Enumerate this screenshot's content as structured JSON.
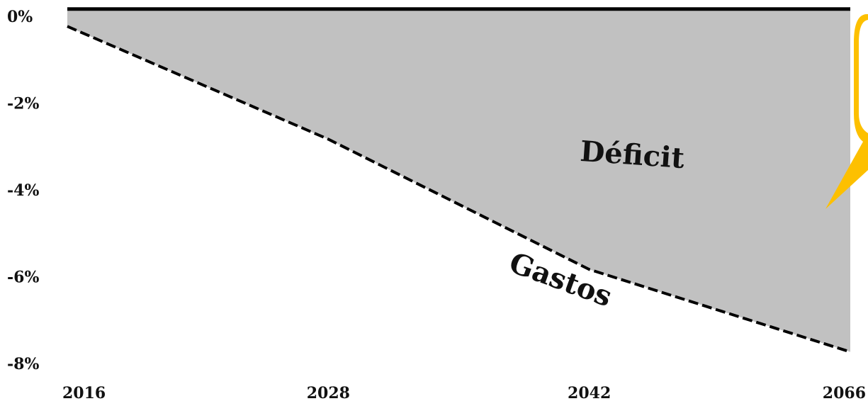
{
  "chart_data": {
    "type": "area",
    "categories": [
      "2016",
      "2028",
      "2042",
      "2066"
    ],
    "series": [
      {
        "color": "#000000",
        "values": [
          0.2,
          0.2,
          0.2,
          0.2
        ]
      },
      {
        "name": "Gastos",
        "color": "#000000",
        "values": [
          -0.2,
          -2.8,
          -5.8,
          -7.7
        ]
      }
    ],
    "fill_color": "#c1c1c1",
    "annotations": [
      "Déficit"
    ],
    "ylim": [
      -8.2,
      0.3
    ],
    "yticks": [
      {
        "value": 0,
        "label": "0%"
      },
      {
        "value": -2,
        "label": "-2%"
      },
      {
        "value": -4,
        "label": "-4%"
      },
      {
        "value": -6,
        "label": "-6%"
      },
      {
        "value": -8,
        "label": "-8%"
      }
    ]
  }
}
